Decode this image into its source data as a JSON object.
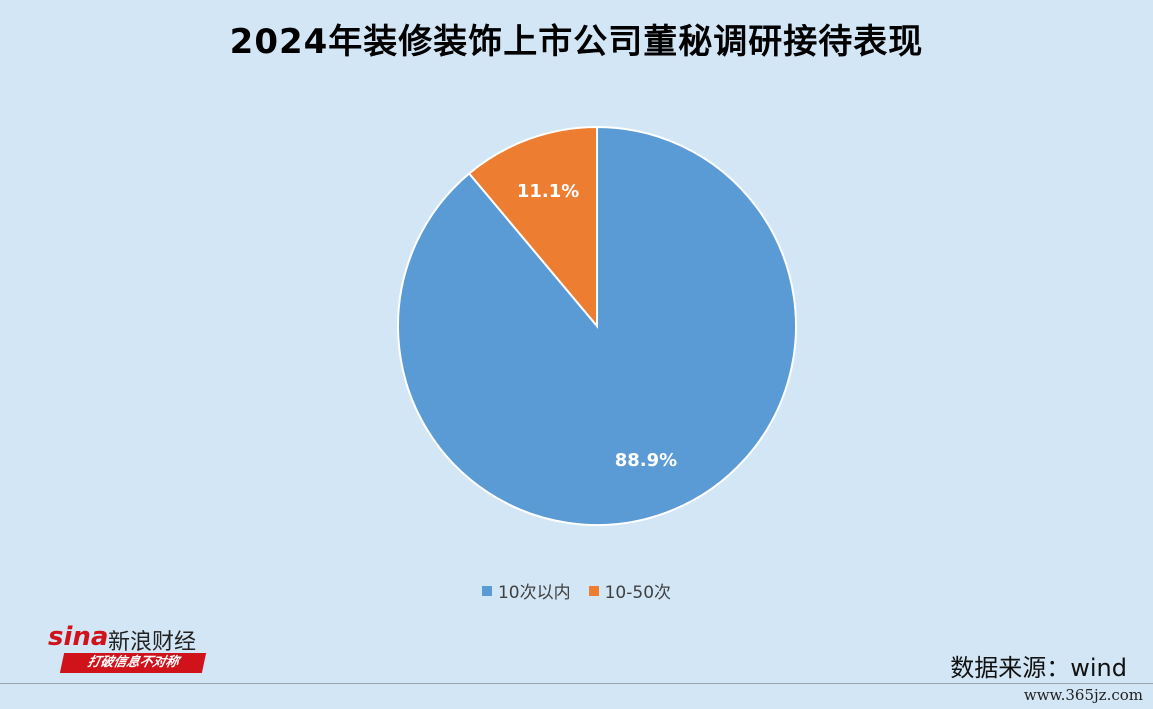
{
  "chart_data": {
    "type": "pie",
    "title": "2024年装修装饰上市公司董秘调研接待表现",
    "slices": [
      {
        "name": "10次以内",
        "value": 88.9,
        "label": "88.9%",
        "color": "#5b9bd5"
      },
      {
        "name": "10-50次",
        "value": 11.1,
        "label": "11.1%",
        "color": "#ed7d31"
      }
    ],
    "legend_position": "bottom"
  },
  "source": "数据来源：wind",
  "logo": {
    "brand": "sina",
    "brand_cn": "新浪财经",
    "slogan": "打破信息不对称"
  },
  "watermark": "www.365jz.com"
}
